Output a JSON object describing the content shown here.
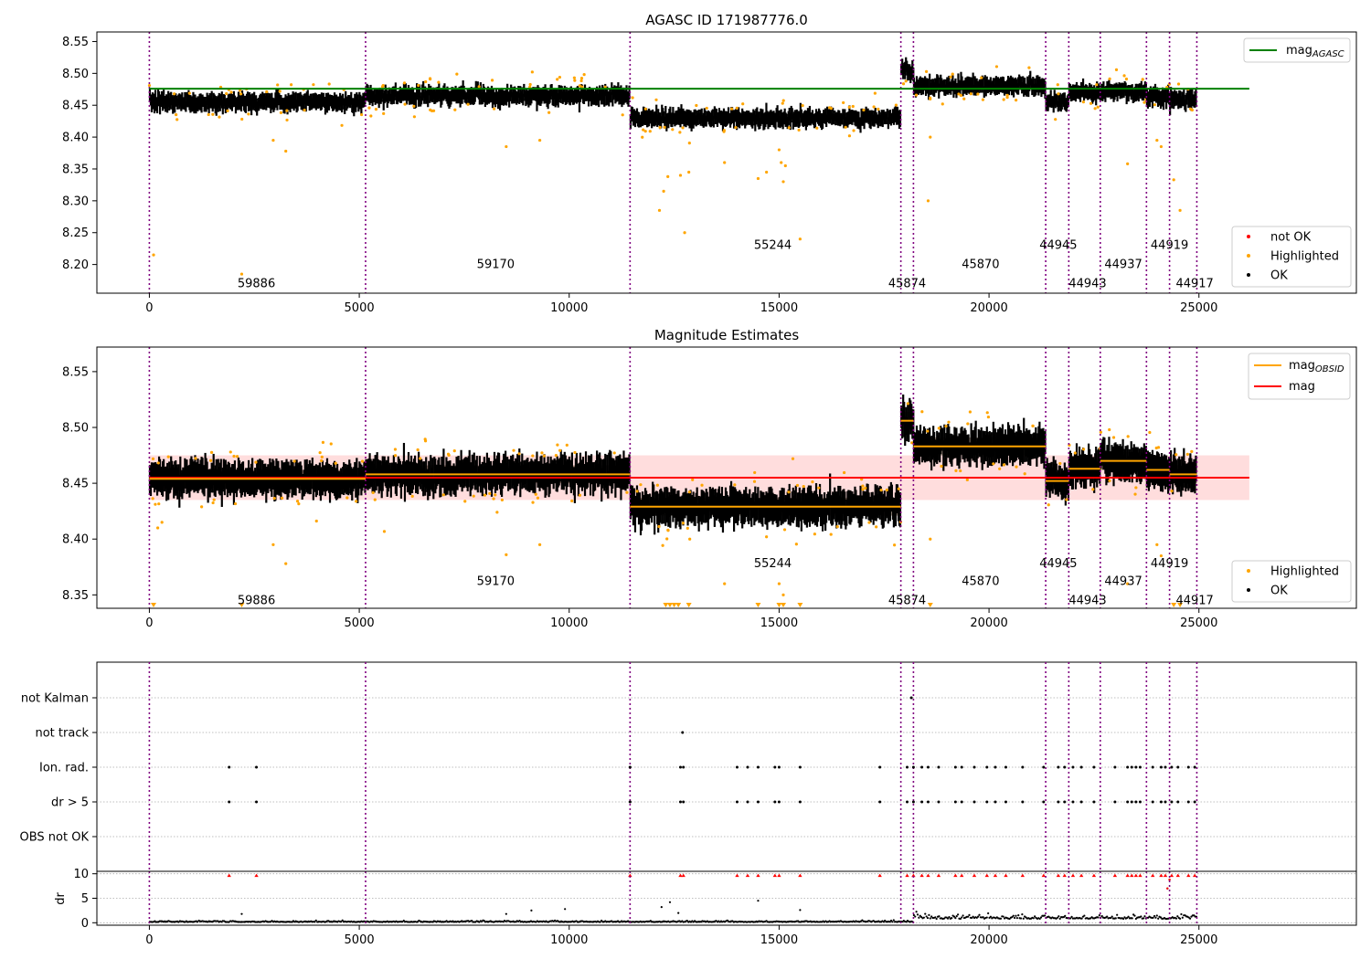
{
  "chart_data": [
    {
      "type": "scatter",
      "title": "AGASC ID 171987776.0",
      "xlim": [
        -1250,
        28750
      ],
      "ylim": [
        8.155,
        8.565
      ],
      "xticks": [
        0,
        5000,
        10000,
        15000,
        20000,
        25000
      ],
      "yticks": [
        8.2,
        8.25,
        8.3,
        8.35,
        8.4,
        8.45,
        8.5,
        8.55
      ],
      "ytick_labels": [
        "8.20",
        "8.25",
        "8.30",
        "8.35",
        "8.40",
        "8.45",
        "8.50",
        "8.55"
      ],
      "agasc_line": {
        "value": 8.476,
        "x": [
          0,
          26200
        ],
        "color": "#008000",
        "label_main": "mag",
        "label_sub": "AGASC"
      },
      "legend_top": "top-right",
      "legend_bottom": "bottom-right",
      "legend_bottom_entries": [
        {
          "label": "not OK",
          "color": "#ff0000"
        },
        {
          "label": "Highlighted",
          "color": "#ffa500"
        },
        {
          "label": "OK",
          "color": "#000000"
        }
      ],
      "obsid_labels": [
        {
          "text": "59886",
          "x": 2550,
          "y": 8.17
        },
        {
          "text": "59170",
          "x": 8250,
          "y": 8.2
        },
        {
          "text": "55244",
          "x": 14850,
          "y": 8.23
        },
        {
          "text": "45874",
          "x": 18050,
          "y": 8.17
        },
        {
          "text": "45870",
          "x": 19800,
          "y": 8.2
        },
        {
          "text": "44945",
          "x": 21650,
          "y": 8.23
        },
        {
          "text": "44943",
          "x": 22350,
          "y": 8.17
        },
        {
          "text": "44937",
          "x": 23200,
          "y": 8.2
        },
        {
          "text": "44919",
          "x": 24300,
          "y": 8.23
        },
        {
          "text": "44917",
          "x": 24900,
          "y": 8.17
        }
      ]
    },
    {
      "type": "scatter",
      "title": "Magnitude Estimates",
      "xlim": [
        -1250,
        28750
      ],
      "ylim": [
        8.338,
        8.572
      ],
      "xticks": [
        0,
        5000,
        10000,
        15000,
        20000,
        25000
      ],
      "yticks": [
        8.35,
        8.4,
        8.45,
        8.5,
        8.55
      ],
      "ytick_labels": [
        "8.35",
        "8.40",
        "8.45",
        "8.50",
        "8.55"
      ],
      "mag_line": {
        "value": 8.455,
        "x": [
          0,
          26200
        ],
        "color": "#ff0000",
        "band": [
          8.435,
          8.475
        ],
        "label": "mag"
      },
      "obsid_mag_label_main": "mag",
      "obsid_mag_label_sub": "OBSID",
      "legend_top": "top-right",
      "legend_bottom": "bottom-right",
      "legend_bottom_entries": [
        {
          "label": "Highlighted",
          "color": "#ffa500"
        },
        {
          "label": "OK",
          "color": "#000000"
        }
      ],
      "obsid_labels": [
        {
          "text": "59886",
          "x": 2550,
          "y": 8.345
        },
        {
          "text": "59170",
          "x": 8250,
          "y": 8.362
        },
        {
          "text": "55244",
          "x": 14850,
          "y": 8.378
        },
        {
          "text": "45874",
          "x": 18050,
          "y": 8.345
        },
        {
          "text": "45870",
          "x": 19800,
          "y": 8.362
        },
        {
          "text": "44945",
          "x": 21650,
          "y": 8.378
        },
        {
          "text": "44943",
          "x": 22350,
          "y": 8.345
        },
        {
          "text": "44937",
          "x": 23200,
          "y": 8.362
        },
        {
          "text": "44919",
          "x": 24300,
          "y": 8.378
        },
        {
          "text": "44917",
          "x": 24900,
          "y": 8.345
        }
      ]
    },
    {
      "type": "scatter",
      "xlim": [
        -1250,
        28750
      ],
      "xticks": [
        0,
        5000,
        10000,
        15000,
        20000,
        25000
      ],
      "flag_rows": [
        "not Kalman",
        "not track",
        "Ion. rad.",
        "dr > 5",
        "OBS not OK"
      ],
      "dr_ylabel": "dr",
      "dr_ylim": [
        -0.5,
        10.5
      ],
      "dr_yticks": [
        0,
        5,
        10
      ],
      "flag_events": {
        "not Kalman": [
          18150
        ],
        "not track": [
          12700
        ],
        "Ion. rad.": [
          1900,
          2550,
          11450,
          12650,
          12720,
          14000,
          14250,
          14500,
          14900,
          15000,
          15500,
          17400,
          18050,
          18200,
          18400,
          18550,
          18800,
          19200,
          19350,
          19650,
          19950,
          20150,
          20400,
          20800,
          21300,
          21650,
          21800,
          22000,
          22200,
          22500,
          23000,
          23300,
          23400,
          23500,
          23600,
          23900,
          24100,
          24200,
          24350,
          24500,
          24750,
          24900
        ],
        "dr > 5": [
          1900,
          2550,
          11450,
          12650,
          12720,
          14000,
          14250,
          14500,
          14900,
          15000,
          15500,
          17400,
          18050,
          18200,
          18400,
          18550,
          18800,
          19200,
          19350,
          19650,
          19950,
          20150,
          20400,
          20800,
          21300,
          21650,
          21800,
          22000,
          22200,
          22500,
          23000,
          23300,
          23400,
          23500,
          23600,
          23900,
          24100,
          24200,
          24350,
          24500,
          24750,
          24900
        ]
      },
      "dr_outliers": [
        {
          "x": 2200,
          "y": 1.8
        },
        {
          "x": 8500,
          "y": 1.8
        },
        {
          "x": 9100,
          "y": 2.5
        },
        {
          "x": 9900,
          "y": 2.8
        },
        {
          "x": 12200,
          "y": 3.2
        },
        {
          "x": 12400,
          "y": 4.2
        },
        {
          "x": 12600,
          "y": 2.0
        },
        {
          "x": 14500,
          "y": 4.5
        },
        {
          "x": 15500,
          "y": 2.6
        },
        {
          "x": 24250,
          "y": 7.0
        },
        {
          "x": 24300,
          "y": 8.8
        }
      ]
    }
  ],
  "segments": [
    {
      "obsid": "59886",
      "start": 0,
      "end": 5150,
      "mag_agasc_panel": 8.455,
      "mag_obsid": 8.454
    },
    {
      "obsid": "59170",
      "start": 5150,
      "end": 11450,
      "mag_agasc_panel": 8.465,
      "mag_obsid": 8.458
    },
    {
      "obsid": "55244",
      "start": 11450,
      "end": 17900,
      "mag_agasc_panel": 8.43,
      "mag_obsid": 8.429
    },
    {
      "obsid": "45874",
      "start": 17900,
      "end": 18200,
      "mag_agasc_panel": 8.505,
      "mag_obsid": 8.506
    },
    {
      "obsid": "45870",
      "start": 18200,
      "end": 21350,
      "mag_agasc_panel": 8.48,
      "mag_obsid": 8.483
    },
    {
      "obsid": "44945",
      "start": 21350,
      "end": 21900,
      "mag_agasc_panel": 8.455,
      "mag_obsid": 8.452
    },
    {
      "obsid": "44943",
      "start": 21900,
      "end": 22650,
      "mag_agasc_panel": 8.47,
      "mag_obsid": 8.463
    },
    {
      "obsid": "44937",
      "start": 22650,
      "end": 23750,
      "mag_agasc_panel": 8.472,
      "mag_obsid": 8.47
    },
    {
      "obsid": "44919",
      "start": 23750,
      "end": 24300,
      "mag_agasc_panel": 8.463,
      "mag_obsid": 8.462
    },
    {
      "obsid": "44917",
      "start": 24300,
      "end": 24950,
      "mag_agasc_panel": 8.46,
      "mag_obsid": 8.458
    }
  ],
  "colors": {
    "ok": "#000000",
    "highlighted": "#ffa500",
    "not_ok": "#ff0000",
    "obsid_line": "#800080",
    "agasc": "#008000",
    "mag": "#ff0000",
    "mag_obsid": "#ffa500"
  }
}
